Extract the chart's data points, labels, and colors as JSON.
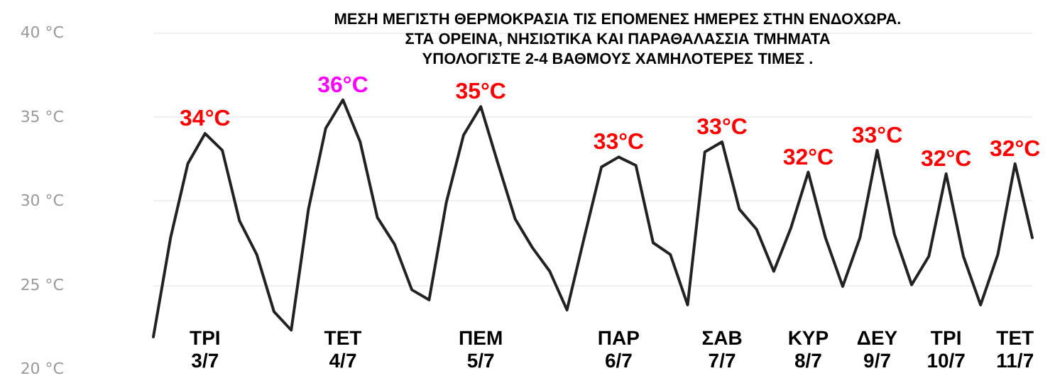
{
  "chart_data": {
    "type": "line",
    "title": "ΜΕΣΗ ΜΕΓΙΣΤΗ ΘΕΡΜΟΚΡΑΣΙΑ ΤΙΣ ΕΠΟΜΕΝΕΣ ΗΜΕΡΕΣ ΣΤΗΝ ΕΝΔΟΧΩΡΑ.\nΣΤΑ ΟΡΕΙΝΑ, ΝΗΣΙΩΤΙΚΑ ΚΑΙ ΠΑΡΑΘΑΛΑΣΣΙΑ ΤΜΗΜΑΤΑ\nΥΠΟΛΟΓΙΣΤΕ 2-4 ΒΑΘΜΟΥΣ ΧΑΜΗΛΟΤΕΡΕΣ ΤΙΜΕΣ .",
    "categories": [
      null,
      null,
      null,
      "ΤΡΙ\n3/7",
      null,
      null,
      null,
      null,
      null,
      null,
      null,
      "ΤΕΤ\n4/7",
      null,
      null,
      null,
      null,
      null,
      null,
      null,
      "ΠΕΜ\n5/7",
      null,
      null,
      null,
      null,
      null,
      null,
      null,
      "ΠΑΡ\n6/7",
      null,
      null,
      null,
      null,
      null,
      "ΣΑΒ\n7/7",
      null,
      null,
      null,
      null,
      "ΚΥΡ\n8/7",
      null,
      null,
      null,
      "ΔΕΥ\n9/7",
      null,
      null,
      null,
      "ΤΡΙ\n10/7",
      null,
      null,
      null,
      "ΤΕΤ\n11/7",
      null
    ],
    "series": [
      {
        "color": "#222222",
        "values": [
          21.9,
          27.8,
          32.2,
          34,
          33,
          28.8,
          26.8,
          23.4,
          22.3,
          29.5,
          34.3,
          36,
          33.5,
          29,
          27.4,
          24.7,
          24.1,
          29.9,
          33.9,
          35.6,
          32.2,
          28.9,
          27.2,
          25.8,
          23.5,
          27.8,
          32,
          32.6,
          32.1,
          27.5,
          26.8,
          23.8,
          32.9,
          33.5,
          29.5,
          28.3,
          25.8,
          28.4,
          31.7,
          27.8,
          24.9,
          27.8,
          33,
          28,
          25,
          26.7,
          31.6,
          26.7,
          23.8,
          26.8,
          32.2,
          27.8
        ]
      }
    ],
    "ylim": [
      20,
      40
    ],
    "yticks": [
      {
        "value": 20,
        "label": "20 °C"
      },
      {
        "value": 25,
        "label": "25 °C"
      },
      {
        "value": 30,
        "label": "30 °C"
      },
      {
        "value": 35,
        "label": "35 °C"
      },
      {
        "value": 40,
        "label": "40 °C"
      }
    ],
    "grid": "y",
    "marker": "none",
    "line_style": "solid",
    "annotations": [
      {
        "text": "34°C",
        "x": "ΤΡΙ\n3/7",
        "y": 34
      },
      {
        "text": "36°C",
        "x": "ΤΕΤ\n4/7",
        "y": 36
      },
      {
        "text": "35°C",
        "x": "ΠΕΜ\n5/7",
        "y": 35.6
      },
      {
        "text": "33°C",
        "x": "ΠΑΡ\n6/7",
        "y": 32.6
      },
      {
        "text": "33°C",
        "x": "ΣΑΒ\n7/7",
        "y": 33.5
      },
      {
        "text": "32°C",
        "x": "ΚΥΡ\n8/7",
        "y": 31.7
      },
      {
        "text": "33°C",
        "x": "ΔΕΥ\n9/7",
        "y": 33
      },
      {
        "text": "32°C",
        "x": "ΤΡΙ\n10/7",
        "y": 31.6
      },
      {
        "text": "32°C",
        "x": "ΤΕΤ\n11/7",
        "y": 32.2
      }
    ]
  }
}
